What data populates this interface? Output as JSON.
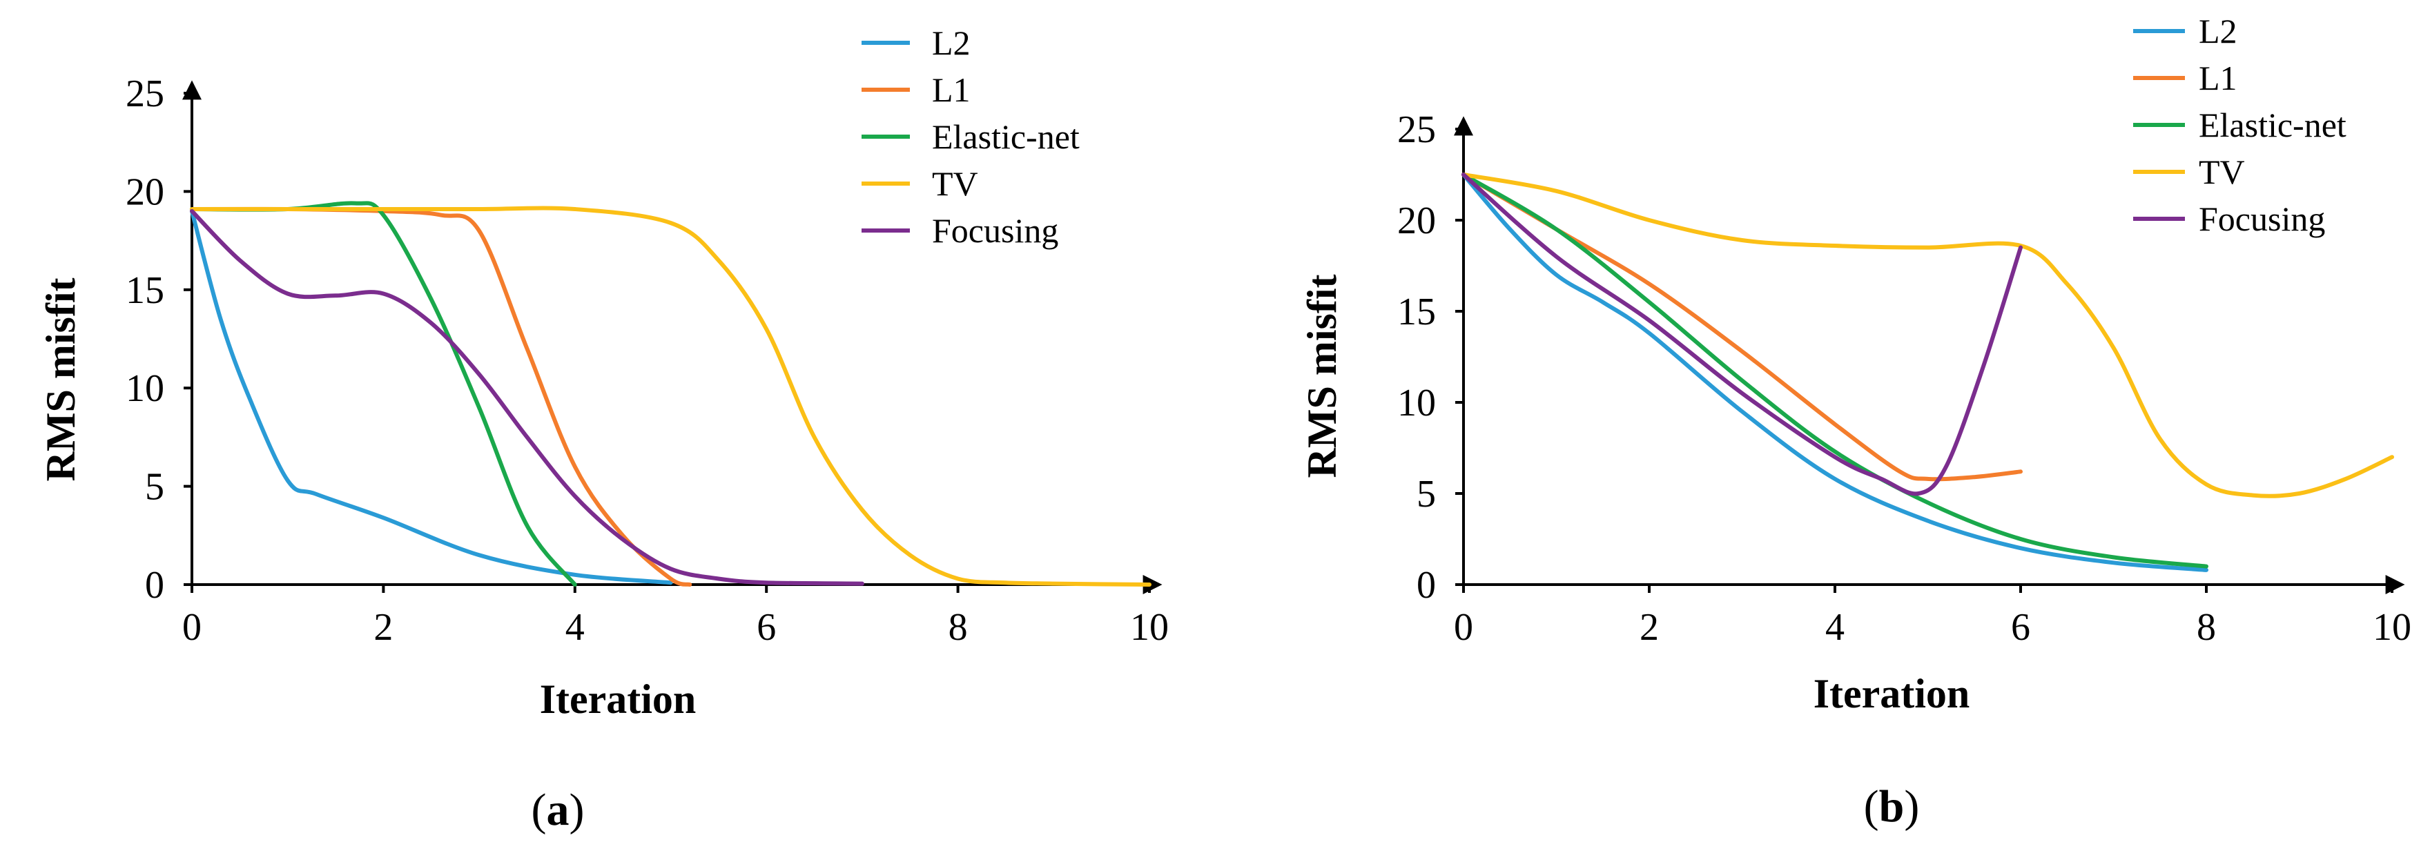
{
  "chart_data": [
    {
      "type": "line",
      "panel": "a",
      "caption": {
        "open": "(",
        "letter": "a",
        "close": ")"
      },
      "xlabel": "Iteration",
      "ylabel": "RMS misfit",
      "xlim": [
        0,
        10
      ],
      "ylim": [
        0,
        25
      ],
      "xticks": [
        0,
        2,
        4,
        6,
        8,
        10
      ],
      "yticks": [
        0,
        5,
        10,
        15,
        20,
        25
      ],
      "legend_position": "top-right",
      "series": [
        {
          "name": "L2",
          "color": "#2a9bd6",
          "x": [
            0,
            0.3,
            0.6,
            1.0,
            1.3,
            2.0,
            3.0,
            4.0,
            5.0
          ],
          "y": [
            19.0,
            13.5,
            9.5,
            5.3,
            4.6,
            3.4,
            1.5,
            0.5,
            0.1
          ]
        },
        {
          "name": "L1",
          "color": "#f47d2c",
          "x": [
            0,
            1,
            2,
            2.6,
            3.0,
            3.5,
            4.0,
            4.5,
            5.0,
            5.2
          ],
          "y": [
            19.1,
            19.1,
            19.0,
            18.8,
            18.0,
            12.0,
            6.0,
            2.5,
            0.3,
            0.0
          ]
        },
        {
          "name": "Elastic-net",
          "color": "#1aa84b",
          "x": [
            0,
            1,
            1.7,
            2.0,
            2.5,
            3.0,
            3.5,
            4.0
          ],
          "y": [
            19.1,
            19.1,
            19.4,
            18.8,
            14.5,
            9.0,
            3.0,
            0.0
          ]
        },
        {
          "name": "TV",
          "color": "#fbbf16",
          "x": [
            0,
            1,
            2,
            3,
            4,
            5,
            5.5,
            6,
            6.5,
            7,
            7.5,
            8,
            8.5,
            9,
            10
          ],
          "y": [
            19.1,
            19.1,
            19.1,
            19.1,
            19.1,
            18.4,
            16.5,
            13.0,
            7.5,
            3.8,
            1.5,
            0.3,
            0.1,
            0.05,
            0.0
          ]
        },
        {
          "name": "Focusing",
          "color": "#7b2d8e",
          "x": [
            0,
            0.5,
            1.0,
            1.5,
            2.0,
            2.5,
            3.0,
            3.5,
            4.0,
            4.5,
            5.0,
            5.5,
            6.0,
            7.0
          ],
          "y": [
            19.0,
            16.5,
            14.8,
            14.7,
            14.8,
            13.3,
            10.7,
            7.5,
            4.5,
            2.3,
            0.8,
            0.3,
            0.1,
            0.05
          ]
        }
      ]
    },
    {
      "type": "line",
      "panel": "b",
      "caption": {
        "open": "(",
        "letter": "b",
        "close": ")"
      },
      "xlabel": "Iteration",
      "ylabel": "RMS misfit",
      "xlim": [
        0,
        10
      ],
      "ylim": [
        0,
        25
      ],
      "xticks": [
        0,
        2,
        4,
        6,
        8,
        10
      ],
      "yticks": [
        0,
        5,
        10,
        15,
        20,
        25
      ],
      "legend_position": "top-right",
      "series": [
        {
          "name": "L2",
          "color": "#2a9bd6",
          "x": [
            0,
            0.5,
            1,
            1.5,
            2,
            3,
            4,
            5,
            6,
            7,
            8
          ],
          "y": [
            22.5,
            19.5,
            17.0,
            15.5,
            13.8,
            9.5,
            5.8,
            3.5,
            2.0,
            1.2,
            0.8
          ]
        },
        {
          "name": "L1",
          "color": "#f47d2c",
          "x": [
            0,
            1,
            2,
            3,
            4,
            4.7,
            5.0,
            5.5,
            6.0
          ],
          "y": [
            22.5,
            19.5,
            16.5,
            12.8,
            8.8,
            6.2,
            5.8,
            5.9,
            6.2
          ]
        },
        {
          "name": "Elastic-net",
          "color": "#1aa84b",
          "x": [
            0,
            1,
            2,
            3,
            4,
            5,
            6,
            7,
            8
          ],
          "y": [
            22.5,
            19.5,
            15.5,
            11.2,
            7.3,
            4.5,
            2.5,
            1.5,
            1.0
          ]
        },
        {
          "name": "TV",
          "color": "#fbbf16",
          "x": [
            0,
            1,
            2,
            3,
            4,
            5,
            6,
            6.5,
            7,
            7.5,
            8,
            8.5,
            9,
            9.5,
            10
          ],
          "y": [
            22.5,
            21.6,
            20.0,
            18.9,
            18.6,
            18.5,
            18.6,
            16.5,
            13.0,
            8.0,
            5.5,
            4.9,
            5.0,
            5.8,
            7.0
          ]
        },
        {
          "name": "Focusing",
          "color": "#7b2d8e",
          "x": [
            0,
            1,
            2,
            3,
            4,
            4.5,
            4.9,
            5.2,
            5.6,
            6.0
          ],
          "y": [
            22.5,
            18.0,
            14.5,
            10.5,
            7.0,
            5.8,
            5.0,
            6.5,
            12.0,
            18.5
          ]
        }
      ]
    }
  ]
}
